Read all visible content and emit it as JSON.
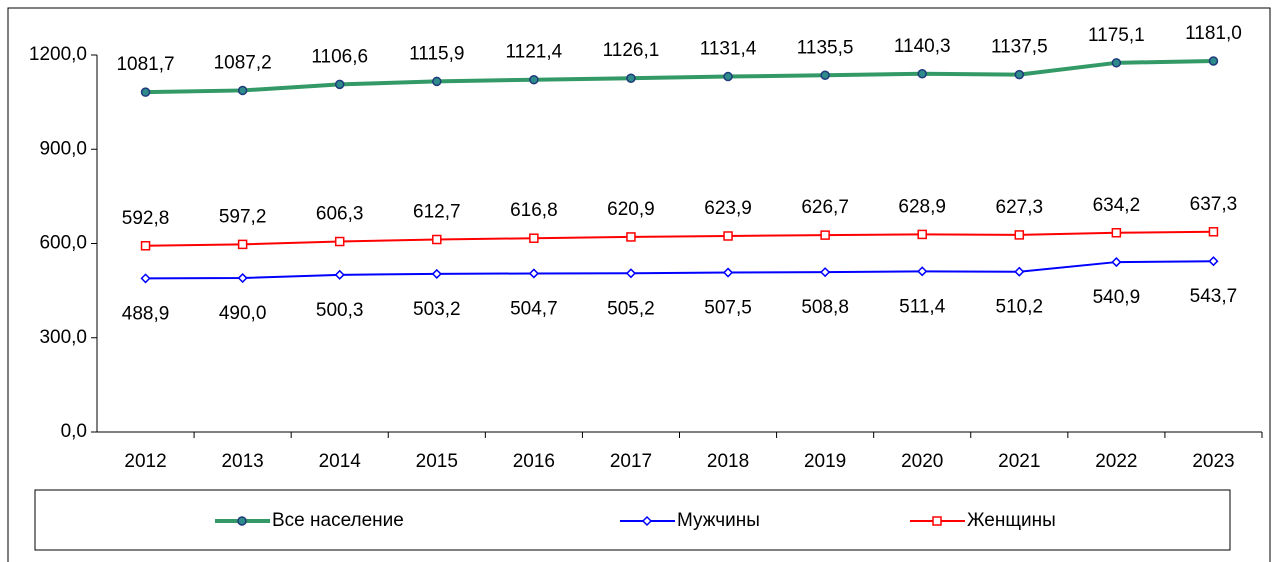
{
  "chart_data": {
    "type": "line",
    "categories": [
      "2012",
      "2013",
      "2014",
      "2015",
      "2016",
      "2017",
      "2018",
      "2019",
      "2020",
      "2021",
      "2022",
      "2023"
    ],
    "ylim": [
      0,
      1200
    ],
    "yticks": [
      {
        "value": 0,
        "label": "0,0"
      },
      {
        "value": 300,
        "label": "300,0"
      },
      {
        "value": 600,
        "label": "600,0"
      },
      {
        "value": 900,
        "label": "900,0"
      },
      {
        "value": 1200,
        "label": "1200,0"
      }
    ],
    "grid": false,
    "legend": "bottom",
    "series": [
      {
        "name": "Все население",
        "color": "#339966",
        "marker": "circle",
        "label_position": "above",
        "values": [
          1081.7,
          1087.2,
          1106.6,
          1115.9,
          1121.4,
          1126.1,
          1131.4,
          1135.5,
          1140.3,
          1137.5,
          1175.1,
          1181.0
        ],
        "value_labels": [
          "1081,7",
          "1087,2",
          "1106,6",
          "1115,9",
          "1121,4",
          "1126,1",
          "1131,4",
          "1135,5",
          "1140,3",
          "1137,5",
          "1175,1",
          "1181,0"
        ]
      },
      {
        "name": "Мужчины",
        "color": "#0000ff",
        "marker": "diamond",
        "label_position": "below",
        "values": [
          488.9,
          490.0,
          500.3,
          503.2,
          504.7,
          505.2,
          507.5,
          508.8,
          511.4,
          510.2,
          540.9,
          543.7
        ],
        "value_labels": [
          "488,9",
          "490,0",
          "500,3",
          "503,2",
          "504,7",
          "505,2",
          "507,5",
          "508,8",
          "511,4",
          "510,2",
          "540,9",
          "543,7"
        ]
      },
      {
        "name": "Женщины",
        "color": "#ff0000",
        "marker": "square",
        "label_position": "above",
        "values": [
          592.8,
          597.2,
          606.3,
          612.7,
          616.8,
          620.9,
          623.9,
          626.7,
          628.9,
          627.3,
          634.2,
          637.3
        ],
        "value_labels": [
          "592,8",
          "597,2",
          "606,3",
          "612,7",
          "616,8",
          "620,9",
          "623,9",
          "626,7",
          "628,9",
          "627,3",
          "634,2",
          "637,3"
        ]
      }
    ]
  }
}
